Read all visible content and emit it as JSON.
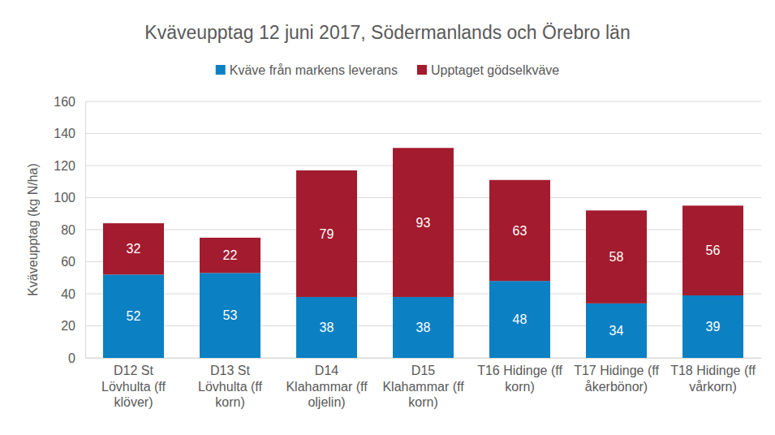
{
  "chart_data": {
    "type": "bar",
    "stacked": true,
    "title": "Kväveupptag 12 juni 2017, Södermanlands och Örebro län",
    "y_label": "Kväveupptag (kg N/ha)",
    "categories": [
      "D12 St Lövhulta (ff klöver)",
      "D13 St Lövhulta (ff korn)",
      "D14 Klahammar (ff oljelin)",
      "D15 Klahammar (ff korn)",
      "T16 Hidinge (ff korn)",
      "T17 Hidinge (ff åkerbönor)",
      "T18 Hidinge (ff vårkorn)"
    ],
    "series": [
      {
        "name": "Kväve från markens leverans",
        "color": "#0b80c3",
        "values": [
          52,
          53,
          38,
          38,
          48,
          34,
          39
        ]
      },
      {
        "name": "Upptaget gödselkväve",
        "color": "#a31b2e",
        "values": [
          32,
          22,
          79,
          93,
          63,
          58,
          56
        ]
      }
    ],
    "ylim": [
      0,
      160
    ],
    "yticks": [
      0,
      20,
      40,
      60,
      80,
      100,
      120,
      140,
      160
    ],
    "grid": true,
    "legend": "top",
    "data_labels": true
  }
}
